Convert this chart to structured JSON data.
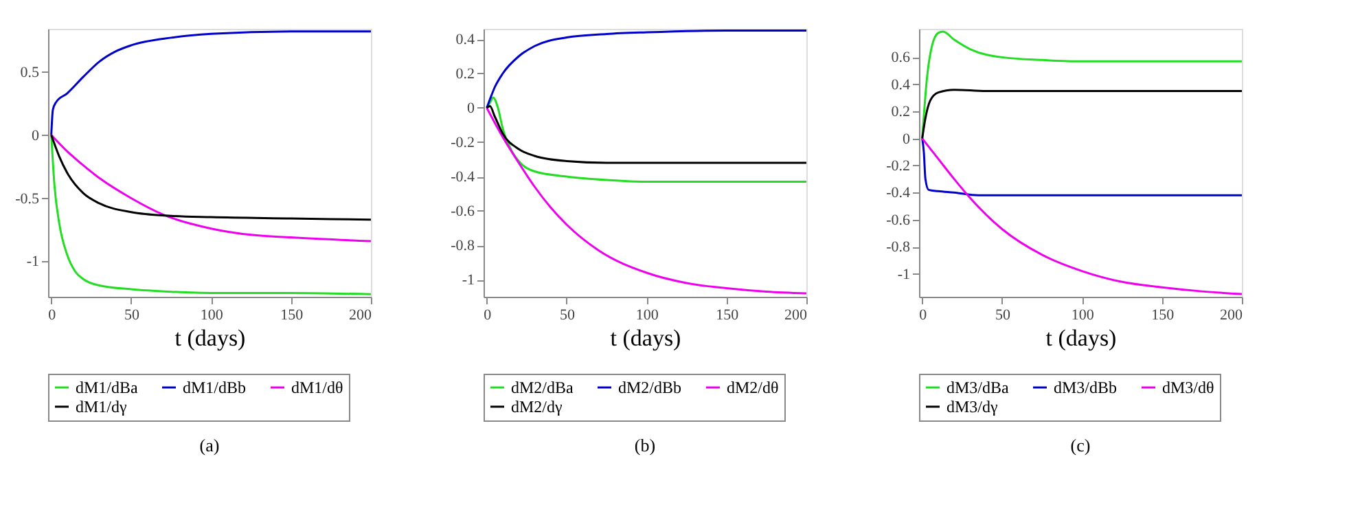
{
  "chart_data": [
    {
      "type": "line",
      "xlabel": "t (days)",
      "annotations": [
        "(a)"
      ],
      "xlim": [
        -2,
        200
      ],
      "xticks": [
        0,
        50,
        100,
        150,
        200
      ],
      "ylim": [
        -1.28,
        0.84
      ],
      "yticks": [
        -1,
        -0.5,
        0,
        0.5
      ],
      "grid": false,
      "legend": "bottom",
      "series": [
        {
          "name": "dM1/dBa",
          "color": "#22dd22",
          "x": [
            0,
            2,
            5,
            10,
            15,
            20,
            30,
            50,
            75,
            100,
            150,
            200
          ],
          "values": [
            0,
            -0.4,
            -0.7,
            -0.95,
            -1.08,
            -1.14,
            -1.19,
            -1.22,
            -1.24,
            -1.25,
            -1.25,
            -1.26
          ]
        },
        {
          "name": "dM1/dBb",
          "color": "#0000cc",
          "x": [
            0,
            1,
            3,
            10,
            20,
            30,
            40,
            50,
            75,
            100,
            150,
            200
          ],
          "values": [
            0,
            0.2,
            0.26,
            0.33,
            0.46,
            0.58,
            0.66,
            0.71,
            0.77,
            0.8,
            0.82,
            0.82
          ]
        },
        {
          "name": "dM1/dθ",
          "color": "#ee00ee",
          "x": [
            0,
            10,
            20,
            30,
            50,
            70,
            100,
            125,
            150,
            200
          ],
          "values": [
            0,
            -0.13,
            -0.24,
            -0.34,
            -0.5,
            -0.63,
            -0.74,
            -0.79,
            -0.81,
            -0.84
          ]
        },
        {
          "name": "dM1/dγ",
          "color": "#000000",
          "x": [
            0,
            5,
            10,
            20,
            30,
            50,
            75,
            100,
            150,
            200
          ],
          "values": [
            0,
            -0.17,
            -0.3,
            -0.46,
            -0.54,
            -0.61,
            -0.64,
            -0.65,
            -0.66,
            -0.67
          ]
        }
      ]
    },
    {
      "type": "line",
      "xlabel": "t (days)",
      "annotations": [
        "(b)"
      ],
      "xlim": [
        -2,
        200
      ],
      "xticks": [
        0,
        50,
        100,
        150,
        200
      ],
      "ylim": [
        -1.1,
        0.46
      ],
      "yticks": [
        -1,
        -0.8,
        -0.6,
        -0.4,
        -0.2,
        0,
        0.2,
        0.4
      ],
      "grid": false,
      "legend": "bottom",
      "series": [
        {
          "name": "dM2/dBa",
          "color": "#22dd22",
          "x": [
            0,
            2,
            4,
            7,
            10,
            15,
            20,
            30,
            50,
            75,
            100,
            150,
            200
          ],
          "values": [
            0,
            0.03,
            0.06,
            0.0,
            -0.12,
            -0.24,
            -0.31,
            -0.37,
            -0.4,
            -0.42,
            -0.43,
            -0.43,
            -0.43
          ]
        },
        {
          "name": "dM2/dBb",
          "color": "#0000cc",
          "x": [
            0,
            2,
            5,
            10,
            20,
            30,
            50,
            75,
            100,
            150,
            200
          ],
          "values": [
            0,
            0.05,
            0.12,
            0.2,
            0.3,
            0.36,
            0.41,
            0.43,
            0.44,
            0.45,
            0.45
          ]
        },
        {
          "name": "dM2/dθ",
          "color": "#ee00ee",
          "x": [
            0,
            10,
            20,
            30,
            40,
            50,
            70,
            100,
            125,
            150,
            175,
            200
          ],
          "values": [
            0,
            -0.17,
            -0.32,
            -0.46,
            -0.58,
            -0.68,
            -0.83,
            -0.96,
            -1.02,
            -1.05,
            -1.07,
            -1.08
          ]
        },
        {
          "name": "dM2/dγ",
          "color": "#000000",
          "x": [
            0,
            2,
            5,
            10,
            20,
            30,
            50,
            75,
            100,
            200
          ],
          "values": [
            0,
            0.01,
            -0.05,
            -0.15,
            -0.24,
            -0.28,
            -0.31,
            -0.32,
            -0.32,
            -0.32
          ]
        }
      ]
    },
    {
      "type": "line",
      "xlabel": "t (days)",
      "annotations": [
        "(c)"
      ],
      "xlim": [
        -2,
        200
      ],
      "xticks": [
        0,
        50,
        100,
        150,
        200
      ],
      "ylim": [
        -1.17,
        0.81
      ],
      "yticks": [
        -1,
        -0.8,
        -0.6,
        -0.4,
        -0.2,
        0,
        0.2,
        0.4,
        0.6
      ],
      "grid": false,
      "legend": "bottom",
      "series": [
        {
          "name": "dM3/dBa",
          "color": "#22dd22",
          "x": [
            0,
            3,
            6,
            10,
            13,
            20,
            30,
            50,
            75,
            100,
            200
          ],
          "values": [
            0,
            0.45,
            0.68,
            0.78,
            0.79,
            0.73,
            0.66,
            0.6,
            0.58,
            0.57,
            0.57
          ]
        },
        {
          "name": "dM3/dBb",
          "color": "#0000cc",
          "x": [
            0,
            1,
            2,
            4,
            10,
            20,
            35,
            200
          ],
          "values": [
            0,
            -0.1,
            -0.3,
            -0.38,
            -0.39,
            -0.4,
            -0.42,
            -0.42
          ]
        },
        {
          "name": "dM3/dθ",
          "color": "#ee00ee",
          "x": [
            0,
            10,
            20,
            30,
            50,
            75,
            100,
            125,
            150,
            175,
            200
          ],
          "values": [
            0,
            -0.15,
            -0.3,
            -0.44,
            -0.67,
            -0.86,
            -0.98,
            -1.06,
            -1.1,
            -1.13,
            -1.15
          ]
        },
        {
          "name": "dM3/dγ",
          "color": "#000000",
          "x": [
            0,
            2,
            5,
            10,
            20,
            40,
            200
          ],
          "values": [
            0,
            0.15,
            0.28,
            0.34,
            0.36,
            0.35,
            0.35
          ]
        }
      ]
    }
  ]
}
